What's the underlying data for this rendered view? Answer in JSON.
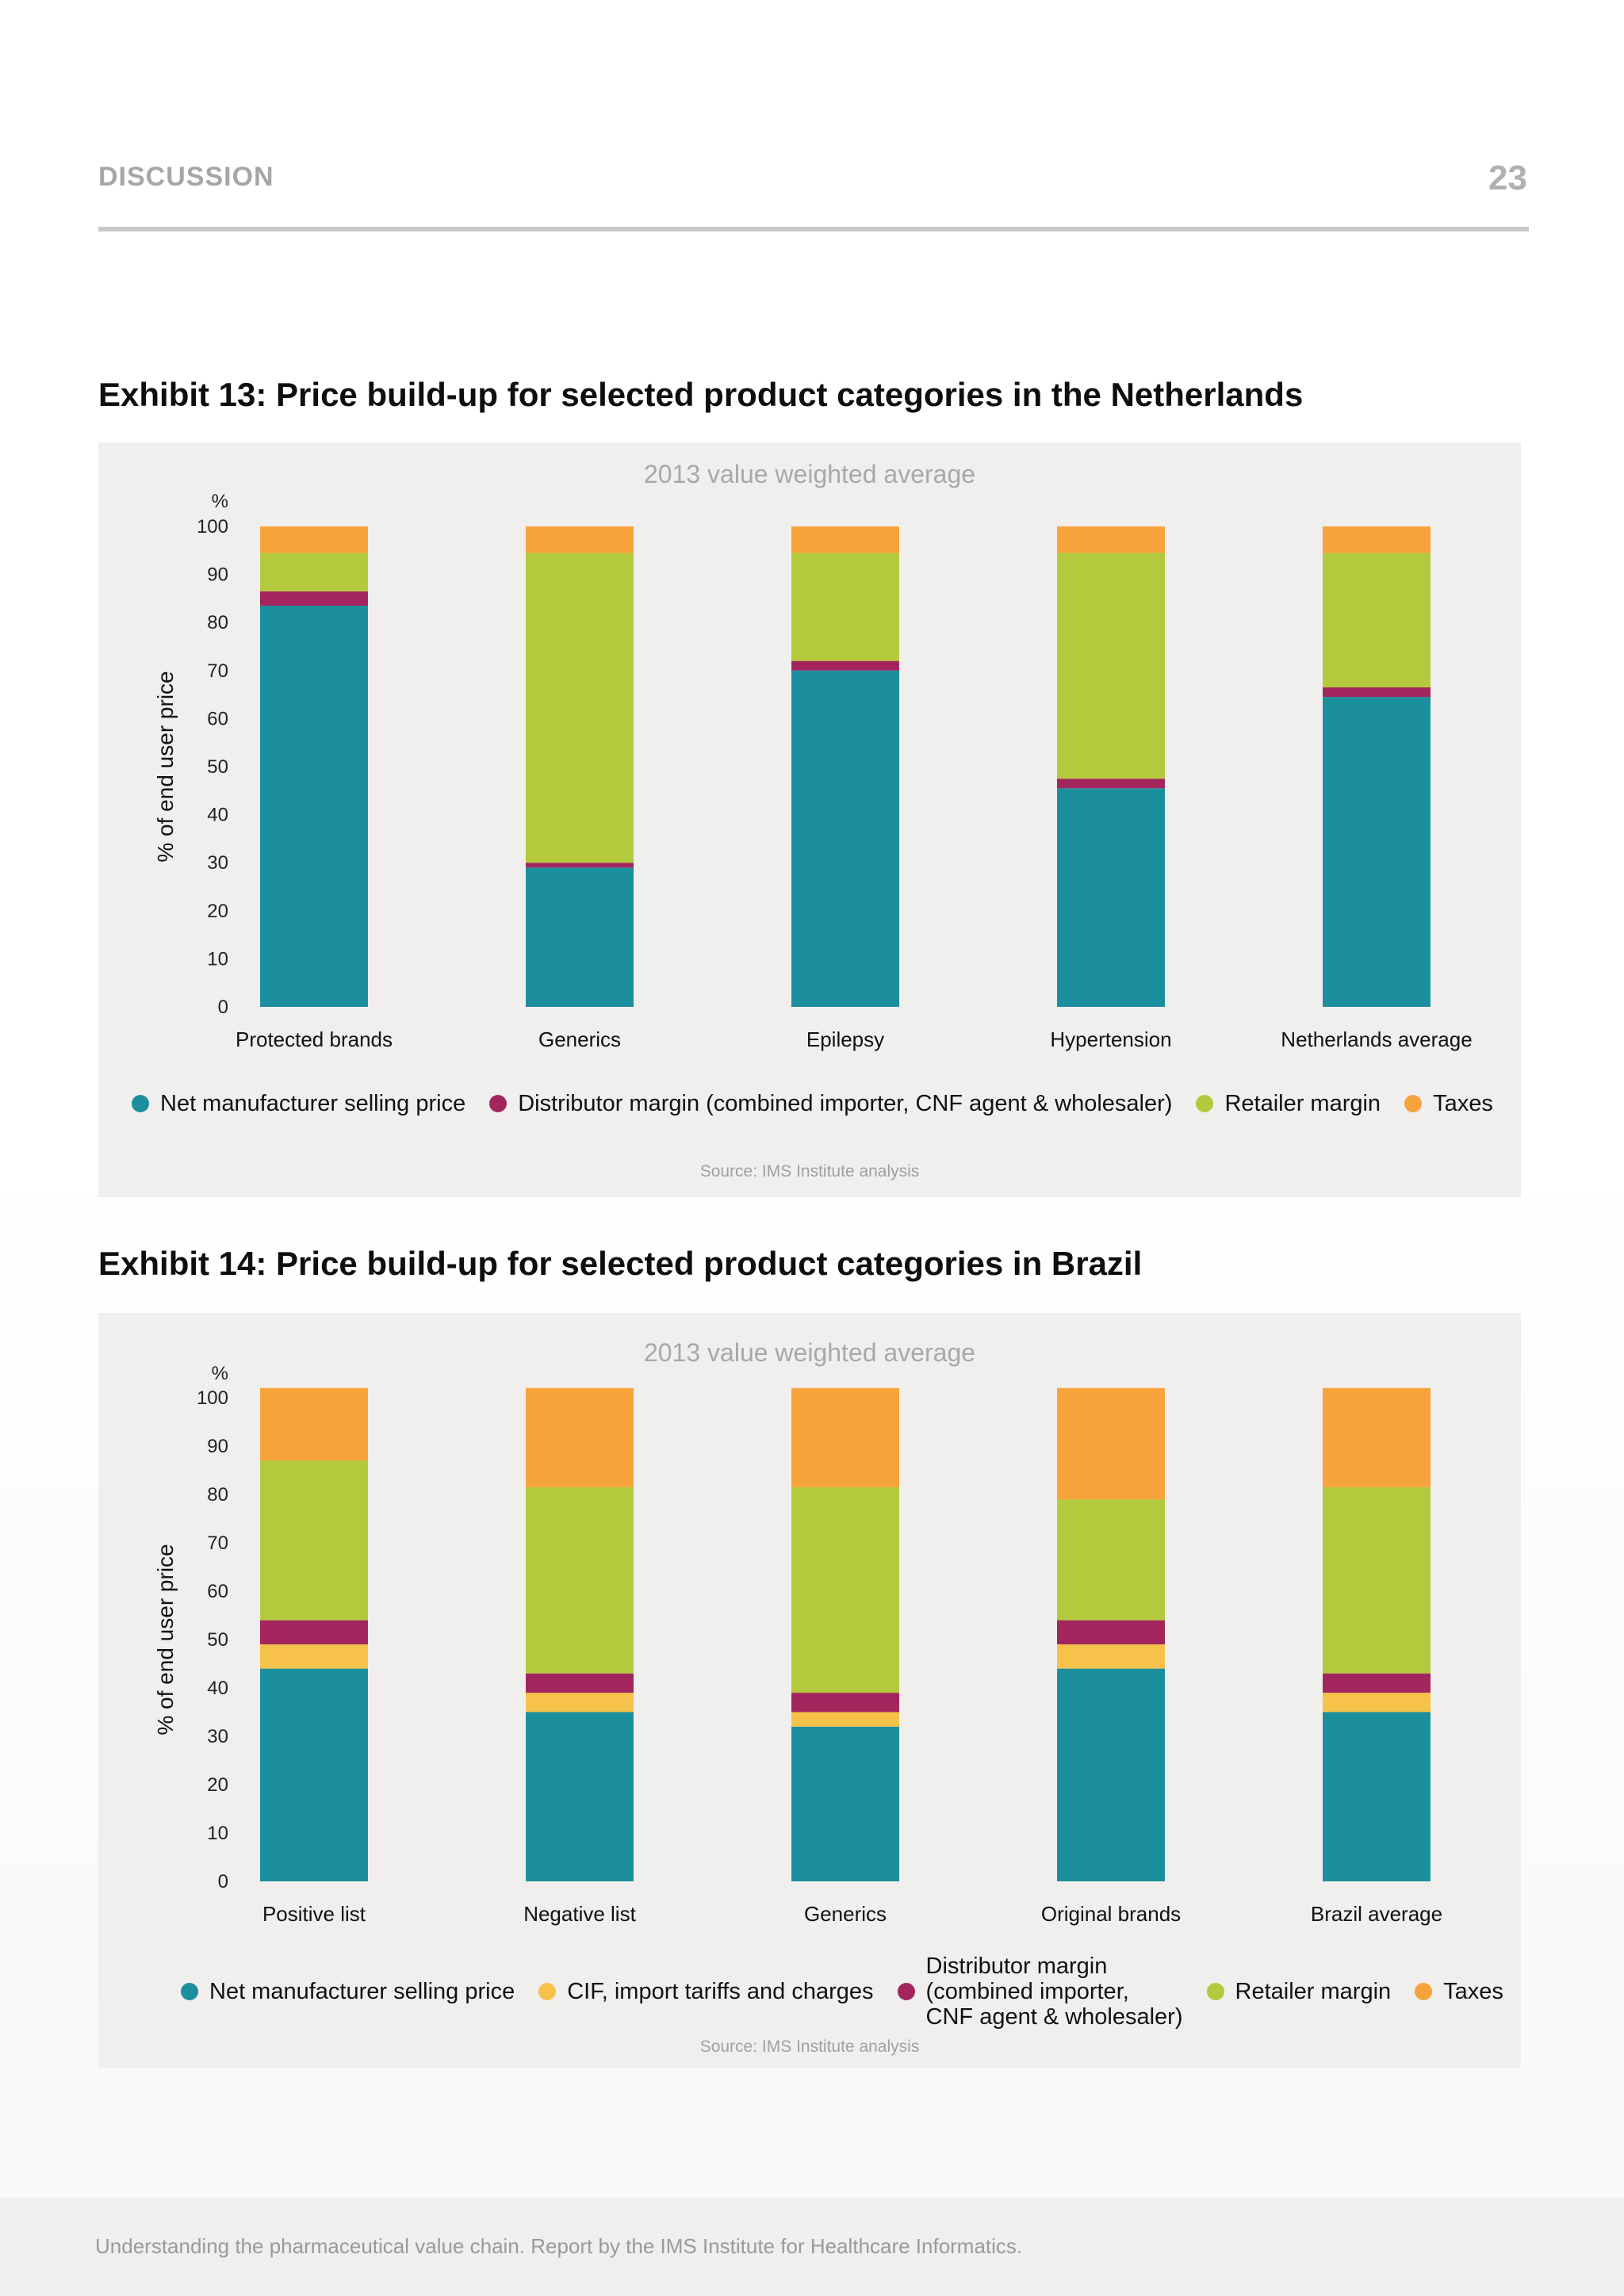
{
  "header": {
    "section": "DISCUSSION",
    "page_number": "23"
  },
  "exhibits": [
    {
      "title": "Exhibit 13: Price build-up for selected product categories in the Netherlands",
      "subtitle": "2013 value weighted average",
      "source": "Source: IMS Institute analysis",
      "legend": [
        {
          "label": "Net manufacturer selling price",
          "color": "#1c8f9e"
        },
        {
          "label": "Distributor margin (combined importer, CNF agent & wholesaler)",
          "color": "#a2265d"
        },
        {
          "label": "Retailer margin",
          "color": "#b5c93c"
        },
        {
          "label": "Taxes",
          "color": "#f7a33c"
        }
      ]
    },
    {
      "title": "Exhibit 14: Price build-up for selected product categories in Brazil",
      "subtitle": "2013 value weighted average",
      "source": "Source: IMS Institute analysis",
      "legend": [
        {
          "label": "Net manufacturer selling price",
          "color": "#1c8f9e"
        },
        {
          "label": "CIF, import tariffs and charges",
          "color": "#f7c24a"
        },
        {
          "label": "Distributor margin\n(combined importer,\nCNF agent & wholesaler)",
          "color": "#a2265d"
        },
        {
          "label": "Retailer margin",
          "color": "#b5c93c"
        },
        {
          "label": "Taxes",
          "color": "#f7a33c"
        }
      ]
    }
  ],
  "chart_data": [
    {
      "type": "bar",
      "stacked": true,
      "title": "Exhibit 13: Price build-up for selected product categories in the Netherlands",
      "subtitle": "2013 value weighted average",
      "ylabel": "% of end user price",
      "yunit": "%",
      "ylim": [
        0,
        100
      ],
      "yticks": [
        0,
        10,
        20,
        30,
        40,
        50,
        60,
        70,
        80,
        90,
        100
      ],
      "legend_position": "bottom",
      "categories": [
        "Protected brands",
        "Generics",
        "Epilepsy",
        "Hypertension",
        "Netherlands average"
      ],
      "series": [
        {
          "name": "Net manufacturer selling price",
          "color": "#1c8f9e",
          "values": [
            83.5,
            29,
            70,
            45.5,
            64.5
          ]
        },
        {
          "name": "Distributor margin (combined importer, CNF agent & wholesaler)",
          "color": "#a2265d",
          "values": [
            3,
            1,
            2,
            2,
            2
          ]
        },
        {
          "name": "Retailer margin",
          "color": "#b5c93c",
          "values": [
            8,
            64.5,
            22.5,
            47,
            28
          ]
        },
        {
          "name": "Taxes",
          "color": "#f7a33c",
          "values": [
            5.5,
            5.5,
            5.5,
            5.5,
            5.5
          ]
        }
      ]
    },
    {
      "type": "bar",
      "stacked": true,
      "title": "Exhibit 14: Price build-up for selected product categories in Brazil",
      "subtitle": "2013 value weighted average",
      "ylabel": "% of end user price",
      "yunit": "%",
      "ylim": [
        0,
        100
      ],
      "yticks": [
        0,
        10,
        20,
        30,
        40,
        50,
        60,
        70,
        80,
        90,
        100
      ],
      "legend_position": "bottom",
      "categories": [
        "Positive list",
        "Negative list",
        "Generics",
        "Original brands",
        "Brazil average"
      ],
      "series": [
        {
          "name": "Net manufacturer selling price",
          "color": "#1c8f9e",
          "values": [
            44,
            35,
            32,
            44,
            35
          ]
        },
        {
          "name": "CIF, import tariffs and charges",
          "color": "#f7c24a",
          "values": [
            5,
            4,
            3,
            5,
            4
          ]
        },
        {
          "name": "Distributor margin (combined importer, CNF agent & wholesaler)",
          "color": "#a2265d",
          "values": [
            5,
            4,
            4,
            5,
            4
          ]
        },
        {
          "name": "Retailer margin",
          "color": "#b5c93c",
          "values": [
            33,
            38.5,
            42.5,
            25,
            38.5
          ]
        },
        {
          "name": "Taxes",
          "color": "#f7a33c",
          "values": [
            15,
            20.5,
            20.5,
            23,
            20.5
          ]
        }
      ]
    }
  ],
  "footer": {
    "text": "Understanding the pharmaceutical value chain. Report by the IMS Institute for Healthcare Informatics."
  }
}
